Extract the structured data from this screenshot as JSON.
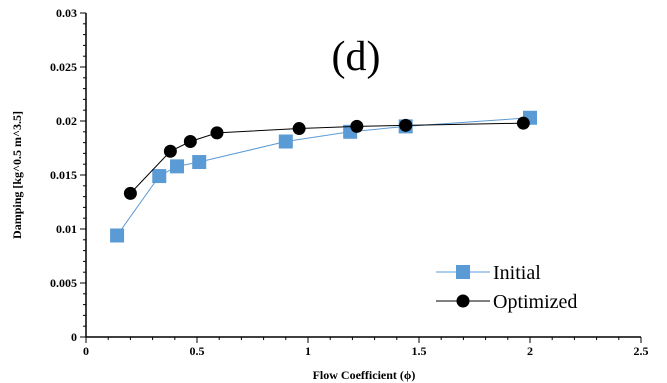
{
  "chart_data": {
    "type": "line",
    "annotation": "(d)",
    "xlabel": "Flow Coefficient (ϕ)",
    "ylabel": "Damping [kg^0.5 m^3.5]",
    "xlim": [
      0,
      2.5
    ],
    "ylim": [
      0,
      0.03
    ],
    "x_ticks": [
      "0",
      "0.5",
      "1",
      "1.5",
      "2",
      "2.5"
    ],
    "y_ticks": [
      "0",
      "0.005",
      "0.01",
      "0.015",
      "0.02",
      "0.025",
      "0.03"
    ],
    "grid": false,
    "legend_position": "bottom-right",
    "series": [
      {
        "name": "Initial",
        "color": "#5b9bd5",
        "marker": "square",
        "x": [
          0.14,
          0.33,
          0.41,
          0.51,
          0.9,
          1.19,
          1.44,
          2.0
        ],
        "y": [
          0.0094,
          0.0149,
          0.0158,
          0.0162,
          0.0181,
          0.019,
          0.0195,
          0.0203
        ]
      },
      {
        "name": "Optimized",
        "color": "#000000",
        "marker": "circle",
        "x": [
          0.2,
          0.38,
          0.47,
          0.59,
          0.96,
          1.22,
          1.44,
          1.97
        ],
        "y": [
          0.0133,
          0.0172,
          0.0181,
          0.0189,
          0.0193,
          0.0195,
          0.0196,
          0.0198
        ]
      }
    ]
  }
}
